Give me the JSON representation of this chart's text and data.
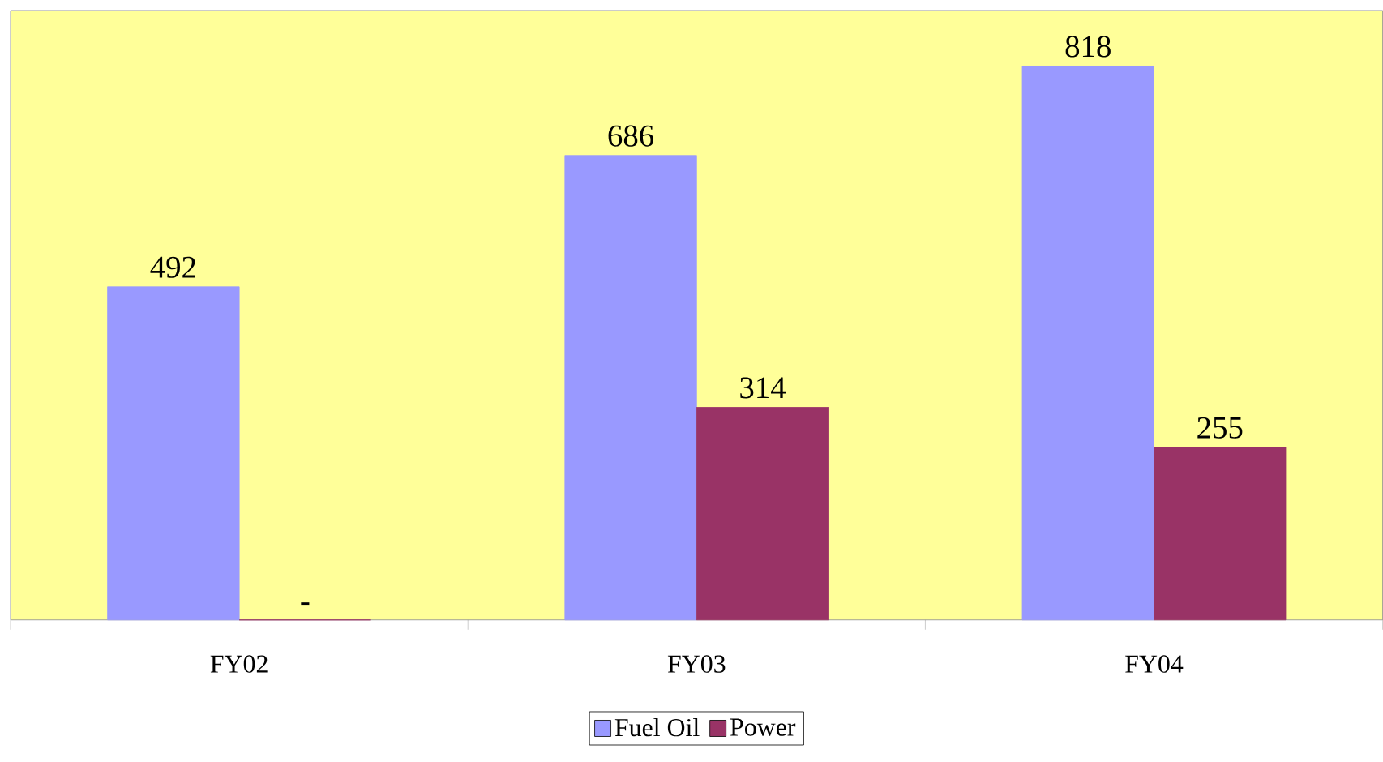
{
  "chart_data": {
    "type": "bar",
    "categories": [
      "FY02",
      "FY03",
      "FY04"
    ],
    "series": [
      {
        "name": "Fuel Oil",
        "color": "#9999ff",
        "values": [
          492,
          686,
          818
        ],
        "value_labels": [
          "492",
          "686",
          "818"
        ]
      },
      {
        "name": "Power",
        "color": "#993366",
        "values": [
          0,
          314,
          255
        ],
        "value_labels": [
          "-",
          "314",
          "255"
        ]
      }
    ],
    "ylim": [
      0,
      900
    ],
    "legend": "bottom",
    "grid": false
  }
}
